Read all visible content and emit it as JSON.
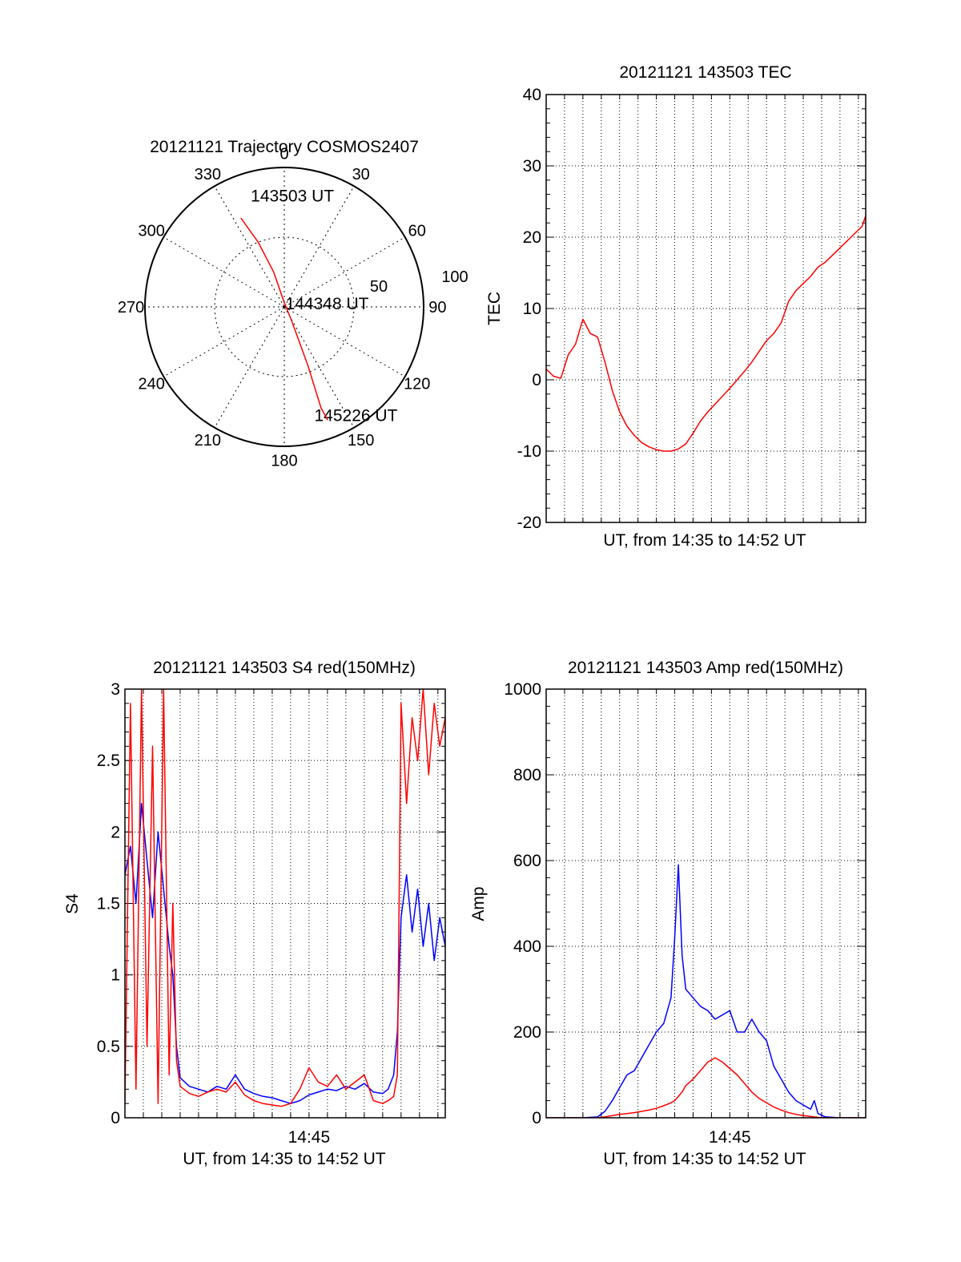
{
  "chart_data": [
    {
      "type": "polar",
      "title": "20121121 Trajectory COSMOS2407",
      "angle_labels": [
        "0",
        "30",
        "60",
        "90",
        "120",
        "150",
        "180",
        "210",
        "240",
        "270",
        "300",
        "330"
      ],
      "radius_labels": [
        "50",
        "100"
      ],
      "rlim": [
        0,
        100
      ],
      "grid": true,
      "series": [
        {
          "color": "#ff0000",
          "points": [
            {
              "az": 334,
              "r": 71
            },
            {
              "az": 338,
              "r": 50
            },
            {
              "az": 343,
              "r": 26
            },
            {
              "az": 0,
              "r": 3
            },
            {
              "az": 152,
              "r": 11
            },
            {
              "az": 158,
              "r": 45
            },
            {
              "az": 160,
              "r": 77
            },
            {
              "az": 159,
              "r": 87
            }
          ]
        }
      ],
      "annotations": [
        {
          "text": "143503 UT",
          "az": 5,
          "r": 80
        },
        {
          "text": "144348 UT",
          "az": 86,
          "r": 32
        },
        {
          "text": "145226 UT",
          "az": 146,
          "r": 94
        }
      ]
    },
    {
      "type": "line",
      "title": "20121121 143503 TEC",
      "xlabel": "UT, from 14:35 to 14:52 UT",
      "ylabel": "TEC",
      "xlim": [
        0,
        17.4
      ],
      "ylim": [
        -20,
        40
      ],
      "yticks": [
        "-20",
        "-10",
        "0",
        "10",
        "20",
        "30",
        "40"
      ],
      "grid": true,
      "series": [
        {
          "color": "#ff0000",
          "x": [
            0,
            0.4,
            0.8,
            1.2,
            1.6,
            2.0,
            2.4,
            2.8,
            3.2,
            3.6,
            4.0,
            4.4,
            4.8,
            5.2,
            5.6,
            6.0,
            6.4,
            6.8,
            7.2,
            7.6,
            8.0,
            8.4,
            8.8,
            9.2,
            9.6,
            10.0,
            10.4,
            10.8,
            11.2,
            11.6,
            12.0,
            12.4,
            12.8,
            13.2,
            13.6,
            14.0,
            14.4,
            14.8,
            15.2,
            15.6,
            16.0,
            16.4,
            16.8,
            17.2,
            17.4
          ],
          "y": [
            1.5,
            0.5,
            0.2,
            3.5,
            5.0,
            8.5,
            6.5,
            6.0,
            2.5,
            -1.5,
            -4.5,
            -6.5,
            -7.8,
            -8.8,
            -9.4,
            -9.8,
            -10.0,
            -10.0,
            -9.7,
            -9.0,
            -7.5,
            -5.8,
            -4.5,
            -3.4,
            -2.3,
            -1.2,
            0.0,
            1.2,
            2.5,
            4.0,
            5.5,
            6.5,
            8.0,
            11.0,
            12.5,
            13.5,
            14.5,
            15.8,
            16.5,
            17.5,
            18.5,
            19.5,
            20.5,
            21.5,
            23.0
          ]
        }
      ]
    },
    {
      "type": "line",
      "title": "20121121 143503 S4 red(150MHz)",
      "xlabel": "UT, from 14:35 to 14:52 UT",
      "ylabel": "S4",
      "xtick_labels": [
        {
          "x": 10,
          "label": "14:45"
        }
      ],
      "xlim": [
        0,
        17.4
      ],
      "ylim": [
        0,
        3
      ],
      "yticks": [
        "0",
        "0.5",
        "1",
        "1.5",
        "2",
        "2.5",
        "3"
      ],
      "grid": true,
      "series": [
        {
          "color": "#0000ff",
          "x": [
            0,
            0.3,
            0.6,
            0.9,
            1.2,
            1.5,
            1.8,
            2.1,
            2.4,
            2.6,
            2.8,
            3.0,
            3.5,
            4.0,
            4.5,
            5.0,
            5.5,
            6.0,
            6.5,
            7.0,
            7.5,
            8.0,
            8.5,
            9.0,
            9.5,
            10.0,
            10.5,
            11.0,
            11.5,
            12.0,
            12.5,
            13.0,
            13.5,
            14.0,
            14.3,
            14.6,
            14.8,
            15.0,
            15.3,
            15.6,
            15.9,
            16.2,
            16.5,
            16.8,
            17.1,
            17.4
          ],
          "y": [
            1.7,
            1.9,
            1.5,
            2.2,
            1.8,
            1.4,
            2.0,
            1.6,
            1.2,
            1.0,
            0.5,
            0.28,
            0.22,
            0.2,
            0.18,
            0.22,
            0.2,
            0.3,
            0.2,
            0.17,
            0.15,
            0.14,
            0.12,
            0.1,
            0.12,
            0.16,
            0.18,
            0.2,
            0.19,
            0.22,
            0.2,
            0.24,
            0.18,
            0.17,
            0.2,
            0.3,
            0.6,
            1.4,
            1.7,
            1.3,
            1.6,
            1.2,
            1.5,
            1.1,
            1.4,
            1.2
          ]
        },
        {
          "color": "#ff0000",
          "x": [
            0,
            0.3,
            0.6,
            0.9,
            1.2,
            1.5,
            1.8,
            2.1,
            2.4,
            2.6,
            2.8,
            3.0,
            3.5,
            4.0,
            4.5,
            5.0,
            5.5,
            6.0,
            6.5,
            7.0,
            7.5,
            8.0,
            8.5,
            9.0,
            9.5,
            10.0,
            10.5,
            11.0,
            11.5,
            12.0,
            12.5,
            13.0,
            13.5,
            14.0,
            14.3,
            14.6,
            14.8,
            15.0,
            15.3,
            15.6,
            15.9,
            16.2,
            16.5,
            16.8,
            17.1,
            17.4
          ],
          "y": [
            0.1,
            2.9,
            0.2,
            3.0,
            0.5,
            2.6,
            0.1,
            3.0,
            0.3,
            1.5,
            0.4,
            0.22,
            0.17,
            0.15,
            0.18,
            0.2,
            0.18,
            0.25,
            0.16,
            0.12,
            0.1,
            0.09,
            0.08,
            0.1,
            0.2,
            0.35,
            0.25,
            0.22,
            0.3,
            0.2,
            0.25,
            0.3,
            0.12,
            0.1,
            0.12,
            0.15,
            0.3,
            2.9,
            2.2,
            2.8,
            2.5,
            3.0,
            2.4,
            2.9,
            2.6,
            2.8
          ]
        }
      ]
    },
    {
      "type": "line",
      "title": "20121121 143503 Amp red(150MHz)",
      "xlabel": "UT, from 14:35 to 14:52 UT",
      "ylabel": "Amp",
      "xtick_labels": [
        {
          "x": 10,
          "label": "14:45"
        }
      ],
      "xlim": [
        0,
        17.4
      ],
      "ylim": [
        0,
        1000
      ],
      "yticks": [
        "0",
        "200",
        "400",
        "600",
        "800",
        "1000"
      ],
      "grid": true,
      "series": [
        {
          "color": "#0000ff",
          "x": [
            0,
            2.0,
            2.8,
            3.2,
            3.6,
            4.0,
            4.4,
            4.8,
            5.2,
            5.6,
            6.0,
            6.4,
            6.8,
            7.0,
            7.2,
            7.4,
            7.6,
            8.0,
            8.4,
            8.8,
            9.2,
            9.6,
            10.0,
            10.4,
            10.8,
            11.2,
            11.6,
            12.0,
            12.4,
            12.8,
            13.2,
            13.6,
            14.0,
            14.4,
            14.6,
            14.8,
            15.2,
            16.0,
            17.4
          ],
          "y": [
            0,
            0,
            2,
            15,
            40,
            70,
            100,
            110,
            140,
            170,
            200,
            220,
            280,
            420,
            590,
            380,
            300,
            280,
            260,
            250,
            230,
            240,
            250,
            200,
            200,
            230,
            200,
            180,
            120,
            90,
            60,
            40,
            30,
            20,
            40,
            10,
            2,
            0,
            0
          ]
        },
        {
          "color": "#ff0000",
          "x": [
            0,
            2.0,
            2.8,
            3.2,
            3.6,
            4.0,
            4.4,
            4.8,
            5.2,
            5.6,
            6.0,
            6.4,
            6.8,
            7.0,
            7.2,
            7.4,
            7.6,
            8.0,
            8.4,
            8.8,
            9.2,
            9.6,
            10.0,
            10.4,
            10.8,
            11.2,
            11.6,
            12.0,
            12.4,
            12.8,
            13.2,
            13.6,
            14.0,
            14.4,
            14.6,
            14.8,
            15.2,
            16.0,
            17.4
          ],
          "y": [
            0,
            0,
            0,
            2,
            5,
            8,
            10,
            12,
            15,
            18,
            22,
            28,
            35,
            40,
            50,
            60,
            75,
            90,
            110,
            130,
            140,
            130,
            115,
            100,
            80,
            60,
            45,
            35,
            25,
            18,
            12,
            8,
            5,
            3,
            2,
            1,
            0,
            0,
            0
          ]
        }
      ]
    }
  ]
}
